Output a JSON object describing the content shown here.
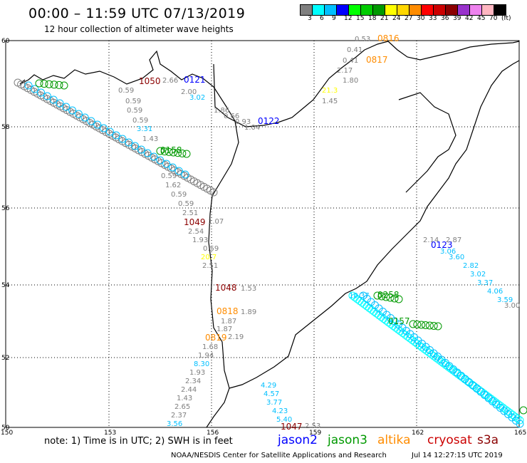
{
  "header": {
    "title": "00:00 – 11:59 UTC 07/13/2019",
    "subtitle": "12 hour collection of altimeter wave heights"
  },
  "scale": {
    "colors": [
      "#7f7f7f",
      "#00ffff",
      "#00bfff",
      "#0000ff",
      "#00ff00",
      "#00cc00",
      "#009900",
      "#ffff00",
      "#ffd700",
      "#ff8c00",
      "#ff0000",
      "#cc0000",
      "#8b0000",
      "#9932cc",
      "#ee82ee",
      "#ffb6c1",
      "#000000"
    ],
    "labels": [
      "3",
      "6",
      "9",
      "12",
      "15",
      "18",
      "21",
      "24",
      "27",
      "30",
      "33",
      "36",
      "39",
      "42",
      "45",
      "70",
      "(ft)"
    ]
  },
  "axes": {
    "lat_labels": [
      "60",
      "58",
      "56",
      "54",
      "52",
      "50"
    ],
    "lon_labels": [
      "150",
      "153",
      "156",
      "159",
      "162",
      "165"
    ]
  },
  "map_labels": [
    {
      "t": "0816",
      "c": "#ff8c00"
    },
    {
      "t": "0.53",
      "c": "#7f7f7f"
    },
    {
      "t": "0.41",
      "c": "#7f7f7f"
    },
    {
      "t": "0.41",
      "c": "#7f7f7f"
    },
    {
      "t": "0817",
      "c": "#ff8c00"
    },
    {
      "t": "2.17",
      "c": "#7f7f7f"
    },
    {
      "t": "1.80",
      "c": "#7f7f7f"
    },
    {
      "t": "21.3",
      "c": "#ffff00"
    },
    {
      "t": "1.45",
      "c": "#7f7f7f"
    },
    {
      "t": "1050",
      "c": "#8b0000"
    },
    {
      "t": "2.66",
      "c": "#7f7f7f"
    },
    {
      "t": "0121",
      "c": "#0000ff"
    },
    {
      "t": "2.00",
      "c": "#7f7f7f"
    },
    {
      "t": "3.02",
      "c": "#00bfff"
    },
    {
      "t": "0.59",
      "c": "#7f7f7f"
    },
    {
      "t": "0.59",
      "c": "#7f7f7f"
    },
    {
      "t": "0.59",
      "c": "#7f7f7f"
    },
    {
      "t": "0.59",
      "c": "#7f7f7f"
    },
    {
      "t": "3.31",
      "c": "#00bfff"
    },
    {
      "t": "1.43",
      "c": "#7f7f7f"
    },
    {
      "t": "1.86",
      "c": "#7f7f7f"
    },
    {
      "t": "0.66",
      "c": "#7f7f7f"
    },
    {
      "t": "0.93",
      "c": "#7f7f7f"
    },
    {
      "t": "1.04",
      "c": "#7f7f7f"
    },
    {
      "t": "0122",
      "c": "#0000ff"
    },
    {
      "t": "0.59",
      "c": "#7f7f7f"
    },
    {
      "t": "1.62",
      "c": "#7f7f7f"
    },
    {
      "t": "0.59",
      "c": "#7f7f7f"
    },
    {
      "t": "0.59",
      "c": "#7f7f7f"
    },
    {
      "t": "2.51",
      "c": "#7f7f7f"
    },
    {
      "t": "1049",
      "c": "#8b0000"
    },
    {
      "t": "1.07",
      "c": "#7f7f7f"
    },
    {
      "t": "2.54",
      "c": "#7f7f7f"
    },
    {
      "t": "1.93",
      "c": "#7f7f7f"
    },
    {
      "t": "0.59",
      "c": "#7f7f7f"
    },
    {
      "t": "20.7",
      "c": "#ffff00"
    },
    {
      "t": "2.51",
      "c": "#7f7f7f"
    },
    {
      "t": "1048",
      "c": "#8b0000"
    },
    {
      "t": "1.53",
      "c": "#7f7f7f"
    },
    {
      "t": "0818",
      "c": "#ff8c00"
    },
    {
      "t": "1.89",
      "c": "#7f7f7f"
    },
    {
      "t": "1.87",
      "c": "#7f7f7f"
    },
    {
      "t": "1.87",
      "c": "#7f7f7f"
    },
    {
      "t": "0819",
      "c": "#ff8c00"
    },
    {
      "t": "2.19",
      "c": "#7f7f7f"
    },
    {
      "t": "1.68",
      "c": "#7f7f7f"
    },
    {
      "t": "1.94",
      "c": "#7f7f7f"
    },
    {
      "t": "8.30",
      "c": "#00bfff"
    },
    {
      "t": "1.93",
      "c": "#7f7f7f"
    },
    {
      "t": "2.34",
      "c": "#7f7f7f"
    },
    {
      "t": "2.44",
      "c": "#7f7f7f"
    },
    {
      "t": "1.43",
      "c": "#7f7f7f"
    },
    {
      "t": "2.65",
      "c": "#7f7f7f"
    },
    {
      "t": "2.37",
      "c": "#7f7f7f"
    },
    {
      "t": "3.56",
      "c": "#00bfff"
    },
    {
      "t": "4.29",
      "c": "#00bfff"
    },
    {
      "t": "4.57",
      "c": "#00bfff"
    },
    {
      "t": "3.77",
      "c": "#00bfff"
    },
    {
      "t": "4.23",
      "c": "#00bfff"
    },
    {
      "t": "5.40",
      "c": "#00bfff"
    },
    {
      "t": "1047",
      "c": "#8b0000"
    },
    {
      "t": "2.53",
      "c": "#7f7f7f"
    },
    {
      "t": "2.14",
      "c": "#7f7f7f"
    },
    {
      "t": "0123",
      "c": "#0000ff"
    },
    {
      "t": "2.87",
      "c": "#7f7f7f"
    },
    {
      "t": "3.06",
      "c": "#00bfff"
    },
    {
      "t": "3.60",
      "c": "#00bfff"
    },
    {
      "t": "2.82",
      "c": "#00bfff"
    },
    {
      "t": "3.02",
      "c": "#00bfff"
    },
    {
      "t": "3.37",
      "c": "#00bfff"
    },
    {
      "t": "4.06",
      "c": "#00bfff"
    },
    {
      "t": "3.59",
      "c": "#00bfff"
    },
    {
      "t": "3.00",
      "c": "#7f7f7f"
    },
    {
      "t": "10.37",
      "c": "#00bfff"
    },
    {
      "t": "0258",
      "c": "#009900"
    },
    {
      "t": "0157",
      "c": "#009900"
    },
    {
      "t": "0158",
      "c": "#009900"
    }
  ],
  "footer": {
    "note": "note: 1) Time is in UTC; 2) SWH is in feet",
    "satellites": [
      {
        "name": "jason2",
        "color": "#0000ff"
      },
      {
        "name": "jason3",
        "color": "#009900"
      },
      {
        "name": "altika",
        "color": "#ff8c00"
      },
      {
        "name": "cryosat",
        "color": "#cc0000"
      },
      {
        "name": "s3a",
        "color": "#8b0000"
      }
    ],
    "credit": "NOAA/NESDIS Center for Satellite Applications and Research",
    "date": "Jul 14 12:27:15 UTC 2019"
  }
}
